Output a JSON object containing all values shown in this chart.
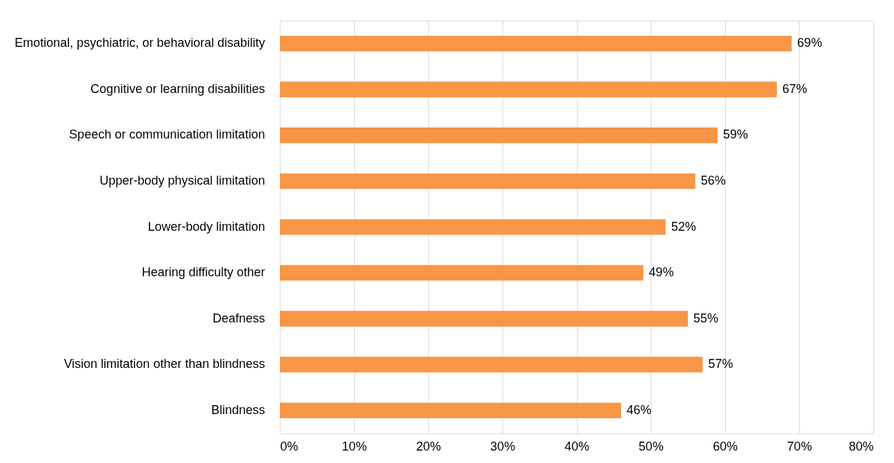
{
  "chart_data": {
    "type": "bar",
    "orientation": "horizontal",
    "categories": [
      "Emotional, psychiatric, or behavioral disability",
      "Cognitive or learning disabilities",
      "Speech or communication limitation",
      "Upper-body physical limitation",
      "Lower-body limitation",
      "Hearing difficulty other",
      "Deafness",
      "Vision limitation other than blindness",
      "Blindness"
    ],
    "values": [
      69,
      67,
      59,
      56,
      52,
      49,
      55,
      57,
      46
    ],
    "value_labels": [
      "69%",
      "67%",
      "59%",
      "56%",
      "52%",
      "49%",
      "55%",
      "57%",
      "46%"
    ],
    "color": "#f79646",
    "xlim": [
      0,
      80
    ],
    "xticks": [
      {
        "value": 0,
        "label": "0%"
      },
      {
        "value": 10,
        "label": "10%"
      },
      {
        "value": 20,
        "label": "20%"
      },
      {
        "value": 30,
        "label": "30%"
      },
      {
        "value": 40,
        "label": "40%"
      },
      {
        "value": 50,
        "label": "50%"
      },
      {
        "value": 60,
        "label": "60%"
      },
      {
        "value": 70,
        "label": "70%"
      },
      {
        "value": 80,
        "label": "80%"
      }
    ],
    "grid": "x"
  }
}
